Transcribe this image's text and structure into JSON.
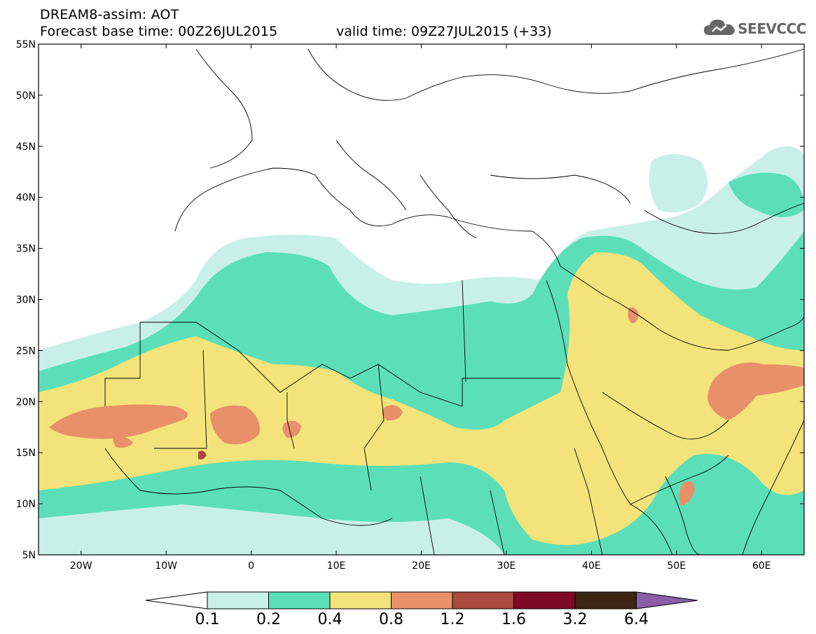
{
  "header": {
    "title": "DREAM8-assim: AOT",
    "base_time": "Forecast base time: 00Z26JUL2015",
    "valid_time": "valid time: 09Z27JUL2015 (+33)"
  },
  "logo": {
    "icon": "cloud-icon",
    "text": "SEEVCCC"
  },
  "map": {
    "lat_labels": [
      "55N",
      "50N",
      "45N",
      "40N",
      "35N",
      "30N",
      "25N",
      "20N",
      "15N",
      "10N",
      "5N"
    ],
    "lon_labels": [
      "20W",
      "10W",
      "0",
      "10E",
      "20E",
      "30E",
      "40E",
      "50E",
      "60E"
    ],
    "lat_range": [
      5,
      55
    ],
    "lon_range": [
      -25,
      65
    ]
  },
  "colorbar": {
    "colors": [
      "#c8f0e8",
      "#5cdfb8",
      "#f3e37a",
      "#e8906a",
      "#a84a3c",
      "#7e0a26",
      "#3e2615",
      "#8a5fa8"
    ],
    "tick_labels": [
      "0.1",
      "0.2",
      "0.4",
      "0.8",
      "1.2",
      "1.6",
      "3.2",
      "6.4"
    ]
  }
}
